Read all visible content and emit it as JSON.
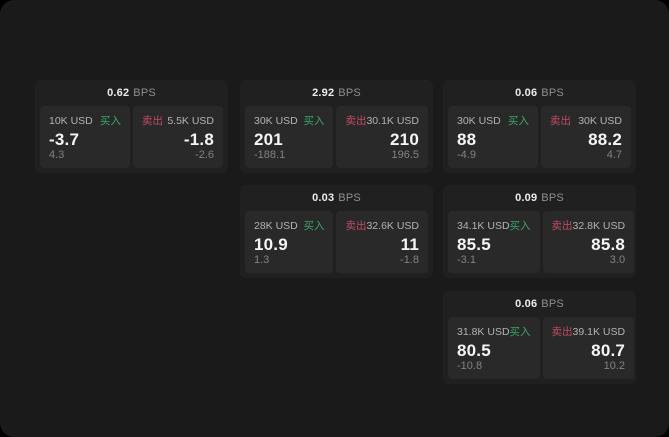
{
  "theme": {
    "page_background": "#000000",
    "surface_background": "#1a1a1b",
    "card_background": "#202021",
    "panel_background": "#29292a",
    "buy_color": "#3da566",
    "sell_color": "#c14b62",
    "value_color": "#f5f5f5",
    "muted_color": "#828283"
  },
  "labels": {
    "bps_unit": "BPS",
    "buy": "买入",
    "sell": "卖出"
  },
  "cards": [
    {
      "bps": "0.62",
      "buy": {
        "amount": "10K USD",
        "price": "-3.7",
        "delta": "4.3"
      },
      "sell": {
        "amount": "5.5K USD",
        "price": "-1.8",
        "delta": "-2.6"
      }
    },
    {
      "bps": "2.92",
      "buy": {
        "amount": "30K USD",
        "price": "201",
        "delta": "-188.1"
      },
      "sell": {
        "amount": "30.1K USD",
        "price": "210",
        "delta": "196.5"
      }
    },
    {
      "bps": "0.06",
      "buy": {
        "amount": "30K USD",
        "price": "88",
        "delta": "-4.9"
      },
      "sell": {
        "amount": "30K USD",
        "price": "88.2",
        "delta": "4.7"
      }
    },
    {
      "bps": "0.03",
      "buy": {
        "amount": "28K USD",
        "price": "10.9",
        "delta": "1.3"
      },
      "sell": {
        "amount": "32.6K USD",
        "price": "11",
        "delta": "-1.8"
      }
    },
    {
      "bps": "0.09",
      "buy": {
        "amount": "34.1K USD",
        "price": "85.5",
        "delta": "-3.1"
      },
      "sell": {
        "amount": "32.8K USD",
        "price": "85.8",
        "delta": "3.0"
      }
    },
    {
      "bps": "0.06",
      "buy": {
        "amount": "31.8K USD",
        "price": "80.5",
        "delta": "-10.8"
      },
      "sell": {
        "amount": "39.1K USD",
        "price": "80.7",
        "delta": "10.2"
      }
    }
  ]
}
